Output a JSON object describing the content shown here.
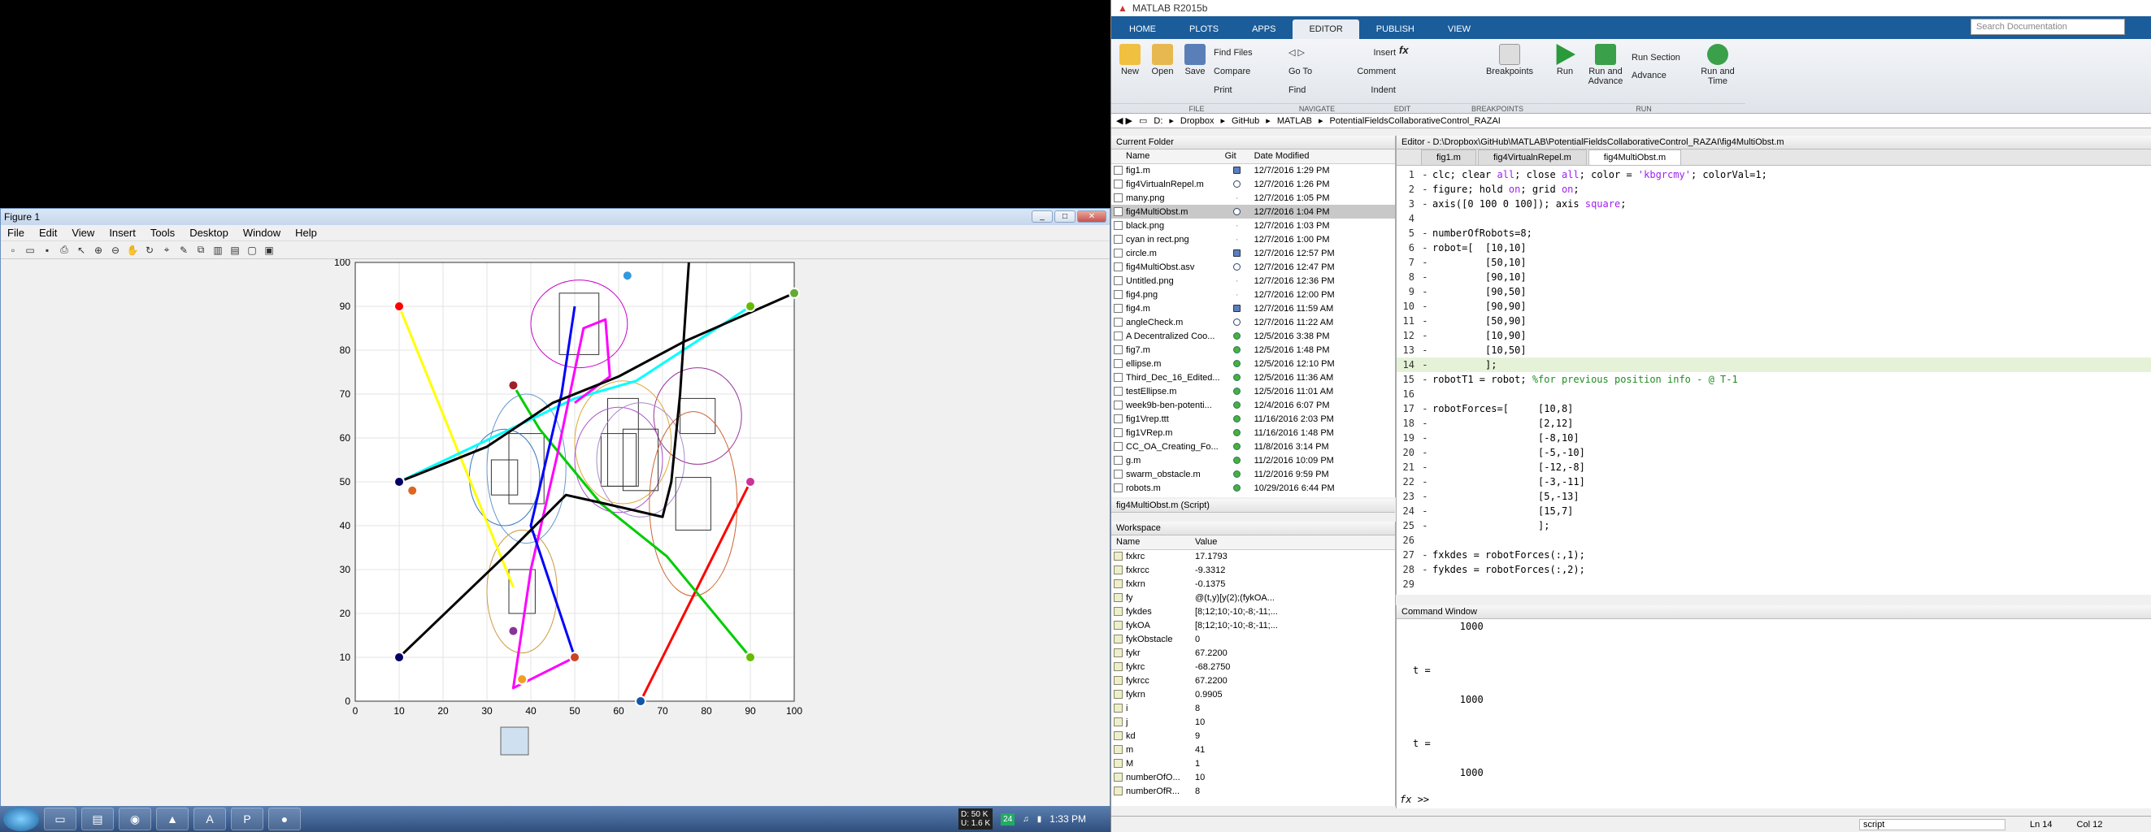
{
  "figure": {
    "title": "Figure 1",
    "menu": [
      "File",
      "Edit",
      "View",
      "Insert",
      "Tools",
      "Desktop",
      "Window",
      "Help"
    ],
    "chart_data": {
      "type": "line",
      "xlim": [
        0,
        100
      ],
      "ylim": [
        0,
        100
      ],
      "xticks": [
        "0",
        "10",
        "20",
        "30",
        "40",
        "50",
        "60",
        "70",
        "80",
        "90",
        "100"
      ],
      "yticks": [
        "0",
        "10",
        "20",
        "30",
        "40",
        "50",
        "60",
        "70",
        "80",
        "90",
        "100"
      ],
      "grid": true,
      "axis": "square",
      "series": [
        {
          "color": "#ffff00",
          "values": [
            [
              10,
              90
            ],
            [
              36,
              26
            ]
          ]
        },
        {
          "color": "#ff0000",
          "values": [
            [
              90,
              50
            ],
            [
              65,
              0
            ]
          ]
        },
        {
          "color": "#00cc00",
          "values": [
            [
              90,
              10
            ],
            [
              71,
              33
            ],
            [
              56,
              45
            ],
            [
              42,
              62
            ],
            [
              36,
              72
            ]
          ]
        },
        {
          "color": "#00ffff",
          "values": [
            [
              10,
              50
            ],
            [
              29,
              59
            ],
            [
              50,
              69
            ],
            [
              64,
              73
            ],
            [
              90,
              90
            ]
          ]
        },
        {
          "color": "#ff00ff",
          "values": [
            [
              50,
              10
            ],
            [
              36,
              3
            ],
            [
              40,
              30
            ],
            [
              46,
              56
            ],
            [
              52,
              85
            ],
            [
              57,
              87
            ],
            [
              58,
              74
            ],
            [
              50,
              68
            ]
          ]
        },
        {
          "color": "#0000ff",
          "values": [
            [
              50,
              90
            ],
            [
              47,
              70
            ],
            [
              40,
              40
            ],
            [
              50,
              10
            ]
          ]
        },
        {
          "color": "#000000",
          "values": [
            [
              10,
              10
            ],
            [
              35,
              34
            ],
            [
              48,
              47
            ],
            [
              57,
              45
            ],
            [
              70,
              42
            ],
            [
              72,
              50
            ],
            [
              74,
              70
            ],
            [
              76,
              100
            ]
          ]
        },
        {
          "color": "#000000",
          "values": [
            [
              10,
              50
            ],
            [
              30,
              58
            ],
            [
              45,
              68
            ],
            [
              60,
              74
            ],
            [
              75,
              82
            ],
            [
              100,
              93
            ]
          ]
        }
      ],
      "markers": [
        {
          "x": 10,
          "y": 90,
          "color": "#ff0000"
        },
        {
          "x": 36,
          "y": 72,
          "color": "#a0202a"
        },
        {
          "x": 62,
          "y": 97,
          "color": "#3399dd"
        },
        {
          "x": 100,
          "y": 93,
          "color": "#66aa33"
        },
        {
          "x": 13,
          "y": 48,
          "color": "#dd6622"
        },
        {
          "x": 36,
          "y": 16,
          "color": "#883399"
        },
        {
          "x": 38,
          "y": 5,
          "color": "#f0a020"
        },
        {
          "x": 65,
          "y": 0,
          "color": "#1155aa"
        },
        {
          "x": 90,
          "y": 50,
          "color": "#cc3399"
        },
        {
          "x": 90,
          "y": 10,
          "color": "#66bb00"
        },
        {
          "x": 50,
          "y": 10,
          "color": "#cc4422"
        },
        {
          "x": 10,
          "y": 10,
          "color": "#000066"
        },
        {
          "x": 10,
          "y": 50,
          "color": "#000066"
        },
        {
          "x": 90,
          "y": 90,
          "color": "#66bb00"
        }
      ],
      "obstacles": [
        {
          "x": 51,
          "y": 86,
          "w": 9,
          "h": 14,
          "ex": 11,
          "ey": 10,
          "color": "#cc00cc"
        },
        {
          "x": 78,
          "y": 65,
          "w": 8,
          "h": 8,
          "ex": 10,
          "ey": 11,
          "color": "#993399"
        },
        {
          "x": 61,
          "y": 59,
          "w": 7,
          "h": 20,
          "ex": 11,
          "ey": 14,
          "color": "#ddaa33"
        },
        {
          "x": 60,
          "y": 55,
          "w": 8,
          "h": 12,
          "ex": 10,
          "ey": 12,
          "color": "#aa55cc"
        },
        {
          "x": 65,
          "y": 55,
          "w": 8,
          "h": 14,
          "ex": 10,
          "ey": 13,
          "color": "#aa88cc"
        },
        {
          "x": 39,
          "y": 53,
          "w": 8,
          "h": 16,
          "ex": 9,
          "ey": 17,
          "color": "#6699cc"
        },
        {
          "x": 34,
          "y": 51,
          "w": 6,
          "h": 8,
          "ex": 8,
          "ey": 11,
          "color": "#3377bb"
        },
        {
          "x": 77,
          "y": 45,
          "w": 8,
          "h": 12,
          "ex": 10,
          "ey": 21,
          "color": "#cc6633"
        },
        {
          "x": 38,
          "y": 25,
          "w": 6,
          "h": 10,
          "ex": 8,
          "ey": 14,
          "color": "#cc9944"
        }
      ]
    }
  },
  "matlab": {
    "title": "MATLAB R2015b",
    "tabs": [
      "HOME",
      "PLOTS",
      "APPS",
      "EDITOR",
      "PUBLISH",
      "VIEW"
    ],
    "active_tab": "EDITOR",
    "search_placeholder": "Search Documentation",
    "ribbon": {
      "file": [
        "New",
        "Open",
        "Save"
      ],
      "file_small": [
        "Find Files",
        "Compare",
        "Print"
      ],
      "navigate": [
        "Go To",
        "Find"
      ],
      "edit": [
        "Insert",
        "Comment",
        "Indent"
      ],
      "fx": "fx",
      "breakpoints": "Breakpoints",
      "run": [
        "Run",
        "Run and Advance",
        "Run Section",
        "Advance",
        "Run and Time"
      ],
      "sections": [
        "FILE",
        "NAVIGATE",
        "EDIT",
        "BREAKPOINTS",
        "RUN"
      ]
    },
    "address": [
      "D:",
      "Dropbox",
      "GitHub",
      "MATLAB",
      "PotentialFieldsCollaborativeControl_RAZAI"
    ],
    "current_folder": {
      "title": "Current Folder",
      "headers": [
        "Name",
        "Git",
        "Date Modified"
      ],
      "rows": [
        [
          "fig1.m",
          "sq",
          "12/7/2016 1:29 PM"
        ],
        [
          "fig4VirtualnRepel.m",
          "circ",
          "12/7/2016 1:26 PM"
        ],
        [
          "many.png",
          "dot",
          "12/7/2016 1:05 PM"
        ],
        [
          "fig4MultiObst.m",
          "circ",
          "12/7/2016 1:04 PM"
        ],
        [
          "black.png",
          "dot",
          "12/7/2016 1:03 PM"
        ],
        [
          "cyan in rect.png",
          "dot",
          "12/7/2016 1:00 PM"
        ],
        [
          "circle.m",
          "sq",
          "12/7/2016 12:57 PM"
        ],
        [
          "fig4MultiObst.asv",
          "circ",
          "12/7/2016 12:47 PM"
        ],
        [
          "Untitled.png",
          "dot",
          "12/7/2016 12:36 PM"
        ],
        [
          "fig4.png",
          "dot",
          "12/7/2016 12:00 PM"
        ],
        [
          "fig4.m",
          "sq",
          "12/7/2016 11:59 AM"
        ],
        [
          "angleCheck.m",
          "circ",
          "12/7/2016 11:22 AM"
        ],
        [
          "A Decentralized Coo...",
          "green",
          "12/5/2016 3:38 PM"
        ],
        [
          "fig7.m",
          "green",
          "12/5/2016 1:48 PM"
        ],
        [
          "ellipse.m",
          "green",
          "12/5/2016 12:10 PM"
        ],
        [
          "Third_Dec_16_Edited...",
          "green",
          "12/5/2016 11:36 AM"
        ],
        [
          "testEllipse.m",
          "green",
          "12/5/2016 11:01 AM"
        ],
        [
          "week9b-ben-potenti...",
          "green",
          "12/4/2016 6:07 PM"
        ],
        [
          "fig1Vrep.ttt",
          "green",
          "11/16/2016 2:03 PM"
        ],
        [
          "fig1VRep.m",
          "green",
          "11/16/2016 1:48 PM"
        ],
        [
          "CC_OA_Creating_Fo...",
          "green",
          "11/8/2016 3:14 PM"
        ],
        [
          "g.m",
          "green",
          "11/2/2016 10:09 PM"
        ],
        [
          "swarm_obstacle.m",
          "green",
          "11/2/2016 9:59 PM"
        ],
        [
          "robots.m",
          "green",
          "10/29/2016 6:44 PM"
        ]
      ],
      "selected": 3,
      "details": "fig4MultiObst.m  (Script)"
    },
    "workspace": {
      "title": "Workspace",
      "headers": [
        "Name",
        "Value"
      ],
      "rows": [
        [
          "fxkrc",
          "17.1793"
        ],
        [
          "fxkrcc",
          "-9.3312"
        ],
        [
          "fxkrn",
          "-0.1375"
        ],
        [
          "fy",
          "@(t,y)[y(2);(fykOA..."
        ],
        [
          "fykdes",
          "[8;12;10;-10;-8;-11;..."
        ],
        [
          "fykOA",
          "[8;12;10;-10;-8;-11;..."
        ],
        [
          "fykObstacle",
          "0"
        ],
        [
          "fykr",
          "67.2200"
        ],
        [
          "fykrc",
          "-68.2750"
        ],
        [
          "fykrcc",
          "67.2200"
        ],
        [
          "fykrn",
          "0.9905"
        ],
        [
          "i",
          "8"
        ],
        [
          "j",
          "10"
        ],
        [
          "kd",
          "9"
        ],
        [
          "m",
          "41"
        ],
        [
          "M",
          "1"
        ],
        [
          "numberOfO...",
          "10"
        ],
        [
          "numberOfR...",
          "8"
        ]
      ]
    },
    "editor": {
      "path_title": "Editor - D:\\Dropbox\\GitHub\\MATLAB\\PotentialFieldsCollaborativeControl_RAZAI\\fig4MultiObst.m",
      "tabs": [
        "fig1.m",
        "fig4VirtualnRepel.m",
        "fig4MultiObst.m"
      ],
      "active_tab": 2,
      "lines": [
        "clc; clear all; close all; color = 'kbgrcmy'; colorVal=1;",
        "figure; hold on; grid on;",
        "axis([0 100 0 100]); axis square;",
        "",
        "numberOfRobots=8;",
        "robot=[  [10,10]",
        "         [50,10]",
        "         [90,10]",
        "         [90,50]",
        "         [90,90]",
        "         [50,90]",
        "         [10,90]",
        "         [10,50]",
        "         ];",
        "robotT1 = robot; %for previous position info - @ T-1",
        "",
        "robotForces=[     [10,8]",
        "                  [2,12]",
        "                  [-8,10]",
        "                  [-5,-10]",
        "                  [-12,-8]",
        "                  [-3,-11]",
        "                  [5,-13]",
        "                  [15,7]",
        "                  ];",
        "",
        "fxkdes = robotForces(:,1);",
        "fykdes = robotForces(:,2);",
        ""
      ],
      "current_line": 14
    },
    "command_window": {
      "title": "Command Window",
      "lines": [
        "        1000",
        "",
        "",
        "t =",
        "",
        "        1000",
        "",
        "",
        "t =",
        "",
        "        1000"
      ],
      "prompt": ">>"
    },
    "status": {
      "mode": "script",
      "ln": "Ln  14",
      "col": "Col  12"
    }
  },
  "taskbar": {
    "time": "1:33 PM",
    "net_down": "D: 50 K",
    "net_up": "U: 1.6 K",
    "cpu": "24"
  }
}
